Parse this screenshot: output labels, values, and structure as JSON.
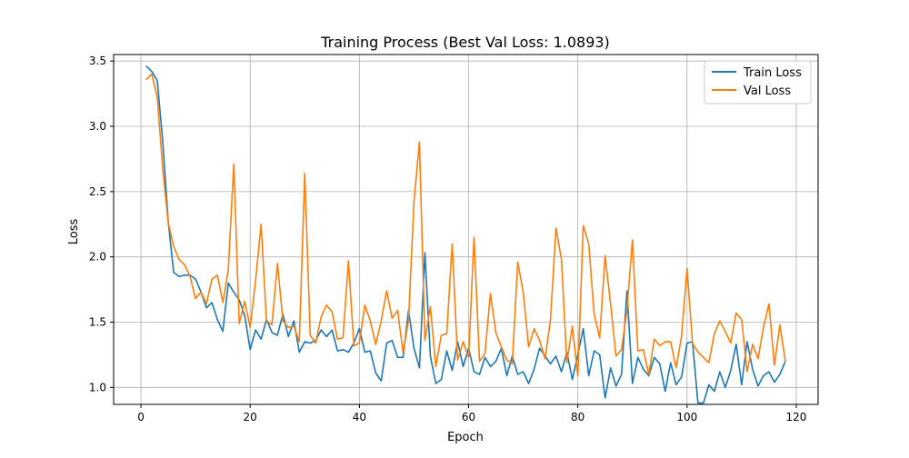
{
  "chart_data": {
    "type": "line",
    "title": "Training Process (Best Val Loss: 1.0893)",
    "xlabel": "Epoch",
    "ylabel": "Loss",
    "xlim": [
      -5,
      124
    ],
    "ylim": [
      0.87,
      3.55
    ],
    "xticks": [
      0,
      20,
      40,
      60,
      80,
      100,
      120
    ],
    "yticks": [
      1.0,
      1.5,
      2.0,
      2.5,
      3.0,
      3.5
    ],
    "grid": true,
    "legend_position": "top-right",
    "series": [
      {
        "name": "Train Loss",
        "color": "#1f77b4",
        "values": [
          3.46,
          3.42,
          3.35,
          2.88,
          2.27,
          1.88,
          1.85,
          1.86,
          1.86,
          1.83,
          1.73,
          1.61,
          1.65,
          1.52,
          1.43,
          1.8,
          1.73,
          1.67,
          1.55,
          1.29,
          1.44,
          1.37,
          1.52,
          1.42,
          1.4,
          1.56,
          1.39,
          1.51,
          1.27,
          1.35,
          1.34,
          1.36,
          1.44,
          1.39,
          1.44,
          1.28,
          1.29,
          1.27,
          1.34,
          1.45,
          1.27,
          1.28,
          1.11,
          1.05,
          1.34,
          1.36,
          1.23,
          1.23,
          1.59,
          1.3,
          1.15,
          2.03,
          1.24,
          1.03,
          1.06,
          1.28,
          1.13,
          1.35,
          1.16,
          1.3,
          1.12,
          1.1,
          1.23,
          1.16,
          1.2,
          1.3,
          1.09,
          1.24,
          1.1,
          1.12,
          1.03,
          1.14,
          1.3,
          1.24,
          1.18,
          1.24,
          1.12,
          1.27,
          1.06,
          1.25,
          1.45,
          1.09,
          1.28,
          1.25,
          0.92,
          1.15,
          1.01,
          1.1,
          1.74,
          1.03,
          1.23,
          1.14,
          1.09,
          1.23,
          1.18,
          0.97,
          1.19,
          1.02,
          1.08,
          1.34,
          1.35,
          0.88,
          0.88,
          1.02,
          0.97,
          1.12,
          1.0,
          1.13,
          1.33,
          1.02,
          1.35,
          1.14,
          1.01,
          1.09,
          1.12,
          1.04,
          1.1,
          1.2
        ]
      },
      {
        "name": "Val Loss",
        "color": "#ff7f0e",
        "values": [
          3.36,
          3.4,
          3.22,
          2.67,
          2.26,
          2.08,
          1.98,
          1.94,
          1.85,
          1.68,
          1.73,
          1.64,
          1.83,
          1.86,
          1.65,
          1.9,
          2.71,
          1.49,
          1.66,
          1.46,
          1.82,
          2.25,
          1.51,
          1.48,
          1.95,
          1.51,
          1.46,
          1.47,
          1.35,
          2.64,
          1.4,
          1.34,
          1.54,
          1.63,
          1.58,
          1.37,
          1.38,
          1.97,
          1.32,
          1.34,
          1.63,
          1.51,
          1.33,
          1.51,
          1.74,
          1.53,
          1.59,
          1.27,
          1.51,
          2.42,
          2.88,
          1.36,
          1.62,
          1.16,
          1.4,
          1.41,
          2.1,
          1.21,
          1.35,
          1.23,
          2.15,
          1.2,
          1.26,
          1.72,
          1.42,
          1.31,
          1.21,
          1.18,
          1.96,
          1.73,
          1.31,
          1.45,
          1.36,
          1.22,
          1.52,
          2.22,
          1.98,
          1.19,
          1.47,
          1.09,
          2.24,
          2.1,
          1.56,
          1.38,
          2.01,
          1.64,
          1.24,
          1.29,
          1.59,
          2.13,
          1.28,
          1.29,
          1.1,
          1.37,
          1.32,
          1.35,
          1.35,
          1.15,
          1.39,
          1.91,
          1.34,
          1.27,
          1.23,
          1.19,
          1.41,
          1.51,
          1.43,
          1.34,
          1.57,
          1.52,
          1.12,
          1.33,
          1.22,
          1.46,
          1.64,
          1.17,
          1.48,
          1.2
        ]
      }
    ]
  }
}
